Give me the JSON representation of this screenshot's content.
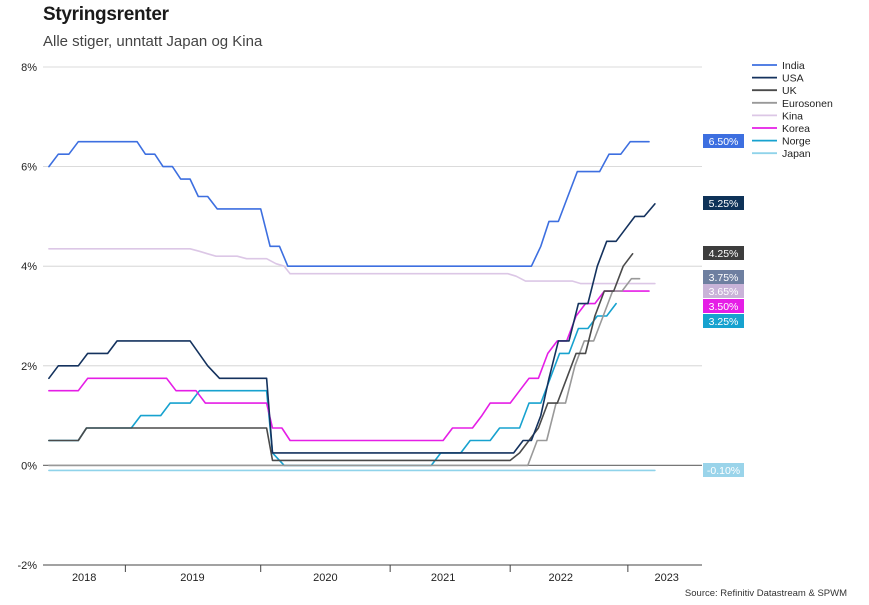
{
  "chart_data": {
    "type": "line",
    "title": "Styringsrenter",
    "subtitle": "Alle stiger, unntatt Japan og Kina",
    "source": "Source: Refinitiv Datastream & SPWM",
    "xlabel": "",
    "ylabel": "",
    "ylim": [
      -2,
      8
    ],
    "xlim": [
      2017.65,
      2023.25
    ],
    "y_ticks": [
      {
        "value": 8,
        "label": "8%"
      },
      {
        "value": 6,
        "label": "6%"
      },
      {
        "value": 4,
        "label": "4%"
      },
      {
        "value": 2,
        "label": "2%"
      },
      {
        "value": 0,
        "label": "0%"
      },
      {
        "value": -2,
        "label": "-2%"
      }
    ],
    "x_tick_labels": [
      {
        "x": 2018.0,
        "label": "2018"
      },
      {
        "x": 2018.92,
        "label": "2019"
      },
      {
        "x": 2020.05,
        "label": "2020"
      },
      {
        "x": 2021.05,
        "label": "2021"
      },
      {
        "x": 2022.05,
        "label": "2022"
      },
      {
        "x": 2022.95,
        "label": "2023"
      }
    ],
    "x_separators": [
      2018.35,
      2019.5,
      2020.6,
      2021.62,
      2022.62
    ],
    "grid": true,
    "legend_position": "right",
    "series": [
      {
        "name": "India",
        "color": "#3d6fe0",
        "end_label": "6.50%",
        "label_color": "#3d6fe0",
        "points": [
          [
            2017.7,
            6.0
          ],
          [
            2017.78,
            6.25
          ],
          [
            2017.87,
            6.25
          ],
          [
            2017.95,
            6.5
          ],
          [
            2018.45,
            6.5
          ],
          [
            2018.52,
            6.25
          ],
          [
            2018.6,
            6.25
          ],
          [
            2018.67,
            6.0
          ],
          [
            2018.75,
            6.0
          ],
          [
            2018.82,
            5.75
          ],
          [
            2018.9,
            5.75
          ],
          [
            2018.97,
            5.4
          ],
          [
            2019.05,
            5.4
          ],
          [
            2019.13,
            5.15
          ],
          [
            2019.5,
            5.15
          ],
          [
            2019.58,
            4.4
          ],
          [
            2019.66,
            4.4
          ],
          [
            2019.73,
            4.0
          ],
          [
            2021.8,
            4.0
          ],
          [
            2021.88,
            4.4
          ],
          [
            2021.95,
            4.9
          ],
          [
            2022.03,
            4.9
          ],
          [
            2022.11,
            5.4
          ],
          [
            2022.19,
            5.9
          ],
          [
            2022.38,
            5.9
          ],
          [
            2022.46,
            6.25
          ],
          [
            2022.56,
            6.25
          ],
          [
            2022.64,
            6.5
          ],
          [
            2022.8,
            6.5
          ]
        ]
      },
      {
        "name": "USA",
        "color": "#14325e",
        "end_label": "5.25%",
        "label_color": "#0e3258",
        "points": [
          [
            2017.7,
            1.75
          ],
          [
            2017.78,
            2.0
          ],
          [
            2017.95,
            2.0
          ],
          [
            2018.03,
            2.25
          ],
          [
            2018.2,
            2.25
          ],
          [
            2018.28,
            2.5
          ],
          [
            2018.9,
            2.5
          ],
          [
            2019.05,
            2.0
          ],
          [
            2019.15,
            1.75
          ],
          [
            2019.55,
            1.75
          ],
          [
            2019.6,
            0.25
          ],
          [
            2021.65,
            0.25
          ],
          [
            2021.73,
            0.5
          ],
          [
            2021.8,
            0.5
          ],
          [
            2021.88,
            1.0
          ],
          [
            2021.95,
            1.75
          ],
          [
            2022.03,
            2.5
          ],
          [
            2022.12,
            2.5
          ],
          [
            2022.2,
            3.25
          ],
          [
            2022.28,
            3.25
          ],
          [
            2022.36,
            4.0
          ],
          [
            2022.44,
            4.5
          ],
          [
            2022.52,
            4.5
          ],
          [
            2022.6,
            4.75
          ],
          [
            2022.68,
            5.0
          ],
          [
            2022.76,
            5.0
          ],
          [
            2022.85,
            5.25
          ]
        ]
      },
      {
        "name": "UK",
        "color": "#4a4a4a",
        "end_label": "4.25%",
        "label_color": "#3d3d3d",
        "points": [
          [
            2017.7,
            0.5
          ],
          [
            2017.95,
            0.5
          ],
          [
            2018.02,
            0.75
          ],
          [
            2019.55,
            0.75
          ],
          [
            2019.6,
            0.1
          ],
          [
            2021.62,
            0.1
          ],
          [
            2021.7,
            0.25
          ],
          [
            2021.78,
            0.5
          ],
          [
            2021.86,
            0.75
          ],
          [
            2021.94,
            1.25
          ],
          [
            2022.02,
            1.25
          ],
          [
            2022.1,
            1.75
          ],
          [
            2022.18,
            2.25
          ],
          [
            2022.26,
            2.25
          ],
          [
            2022.34,
            3.0
          ],
          [
            2022.42,
            3.5
          ],
          [
            2022.5,
            3.5
          ],
          [
            2022.58,
            4.0
          ],
          [
            2022.66,
            4.25
          ]
        ]
      },
      {
        "name": "Eurosonen",
        "color": "#999999",
        "end_label": "3.75%",
        "label_color": "#6e7fa0",
        "points": [
          [
            2017.7,
            0.0
          ],
          [
            2021.77,
            0.0
          ],
          [
            2021.85,
            0.5
          ],
          [
            2021.93,
            0.5
          ],
          [
            2022.01,
            1.25
          ],
          [
            2022.09,
            1.25
          ],
          [
            2022.17,
            2.0
          ],
          [
            2022.25,
            2.5
          ],
          [
            2022.33,
            2.5
          ],
          [
            2022.41,
            3.0
          ],
          [
            2022.49,
            3.5
          ],
          [
            2022.57,
            3.5
          ],
          [
            2022.65,
            3.75
          ],
          [
            2022.72,
            3.75
          ]
        ]
      },
      {
        "name": "Kina",
        "color": "#dcc7e6",
        "end_label": "3.65%",
        "label_color": "#c9b3d8",
        "points": [
          [
            2017.7,
            4.35
          ],
          [
            2018.9,
            4.35
          ],
          [
            2018.98,
            4.3
          ],
          [
            2019.05,
            4.25
          ],
          [
            2019.12,
            4.2
          ],
          [
            2019.3,
            4.2
          ],
          [
            2019.38,
            4.15
          ],
          [
            2019.55,
            4.15
          ],
          [
            2019.63,
            4.05
          ],
          [
            2019.7,
            4.0
          ],
          [
            2019.75,
            3.85
          ],
          [
            2021.6,
            3.85
          ],
          [
            2021.67,
            3.8
          ],
          [
            2021.75,
            3.7
          ],
          [
            2022.15,
            3.7
          ],
          [
            2022.22,
            3.65
          ],
          [
            2022.85,
            3.65
          ]
        ]
      },
      {
        "name": "Korea",
        "color": "#e51ee6",
        "end_label": "3.50%",
        "label_color": "#e51ee6",
        "points": [
          [
            2017.7,
            1.5
          ],
          [
            2017.95,
            1.5
          ],
          [
            2018.03,
            1.75
          ],
          [
            2018.7,
            1.75
          ],
          [
            2018.78,
            1.5
          ],
          [
            2018.95,
            1.5
          ],
          [
            2019.03,
            1.25
          ],
          [
            2019.55,
            1.25
          ],
          [
            2019.6,
            0.75
          ],
          [
            2019.68,
            0.75
          ],
          [
            2019.75,
            0.5
          ],
          [
            2021.05,
            0.5
          ],
          [
            2021.13,
            0.75
          ],
          [
            2021.3,
            0.75
          ],
          [
            2021.38,
            1.0
          ],
          [
            2021.45,
            1.25
          ],
          [
            2021.62,
            1.25
          ],
          [
            2021.7,
            1.5
          ],
          [
            2021.78,
            1.75
          ],
          [
            2021.86,
            1.75
          ],
          [
            2021.94,
            2.25
          ],
          [
            2022.02,
            2.5
          ],
          [
            2022.1,
            2.5
          ],
          [
            2022.18,
            3.0
          ],
          [
            2022.26,
            3.25
          ],
          [
            2022.34,
            3.25
          ],
          [
            2022.42,
            3.5
          ],
          [
            2022.8,
            3.5
          ]
        ]
      },
      {
        "name": "Norge",
        "color": "#17a2cf",
        "end_label": "3.25%",
        "label_color": "#17a2cf",
        "points": [
          [
            2017.7,
            0.5
          ],
          [
            2017.95,
            0.5
          ],
          [
            2018.02,
            0.75
          ],
          [
            2018.4,
            0.75
          ],
          [
            2018.48,
            1.0
          ],
          [
            2018.65,
            1.0
          ],
          [
            2018.73,
            1.25
          ],
          [
            2018.9,
            1.25
          ],
          [
            2018.98,
            1.5
          ],
          [
            2019.55,
            1.5
          ],
          [
            2019.6,
            0.25
          ],
          [
            2019.7,
            0.0
          ],
          [
            2020.95,
            0.0
          ],
          [
            2021.03,
            0.25
          ],
          [
            2021.2,
            0.25
          ],
          [
            2021.28,
            0.5
          ],
          [
            2021.45,
            0.5
          ],
          [
            2021.53,
            0.75
          ],
          [
            2021.7,
            0.75
          ],
          [
            2021.78,
            1.25
          ],
          [
            2021.88,
            1.25
          ],
          [
            2021.96,
            1.75
          ],
          [
            2022.04,
            2.25
          ],
          [
            2022.12,
            2.25
          ],
          [
            2022.2,
            2.75
          ],
          [
            2022.28,
            2.75
          ],
          [
            2022.36,
            3.0
          ],
          [
            2022.44,
            3.0
          ],
          [
            2022.52,
            3.25
          ]
        ]
      },
      {
        "name": "Japan",
        "color": "#8fd3ea",
        "end_label": "-0.10%",
        "label_color": "#9ad4ea",
        "points": [
          [
            2017.7,
            -0.1
          ],
          [
            2022.85,
            -0.1
          ]
        ]
      }
    ]
  }
}
